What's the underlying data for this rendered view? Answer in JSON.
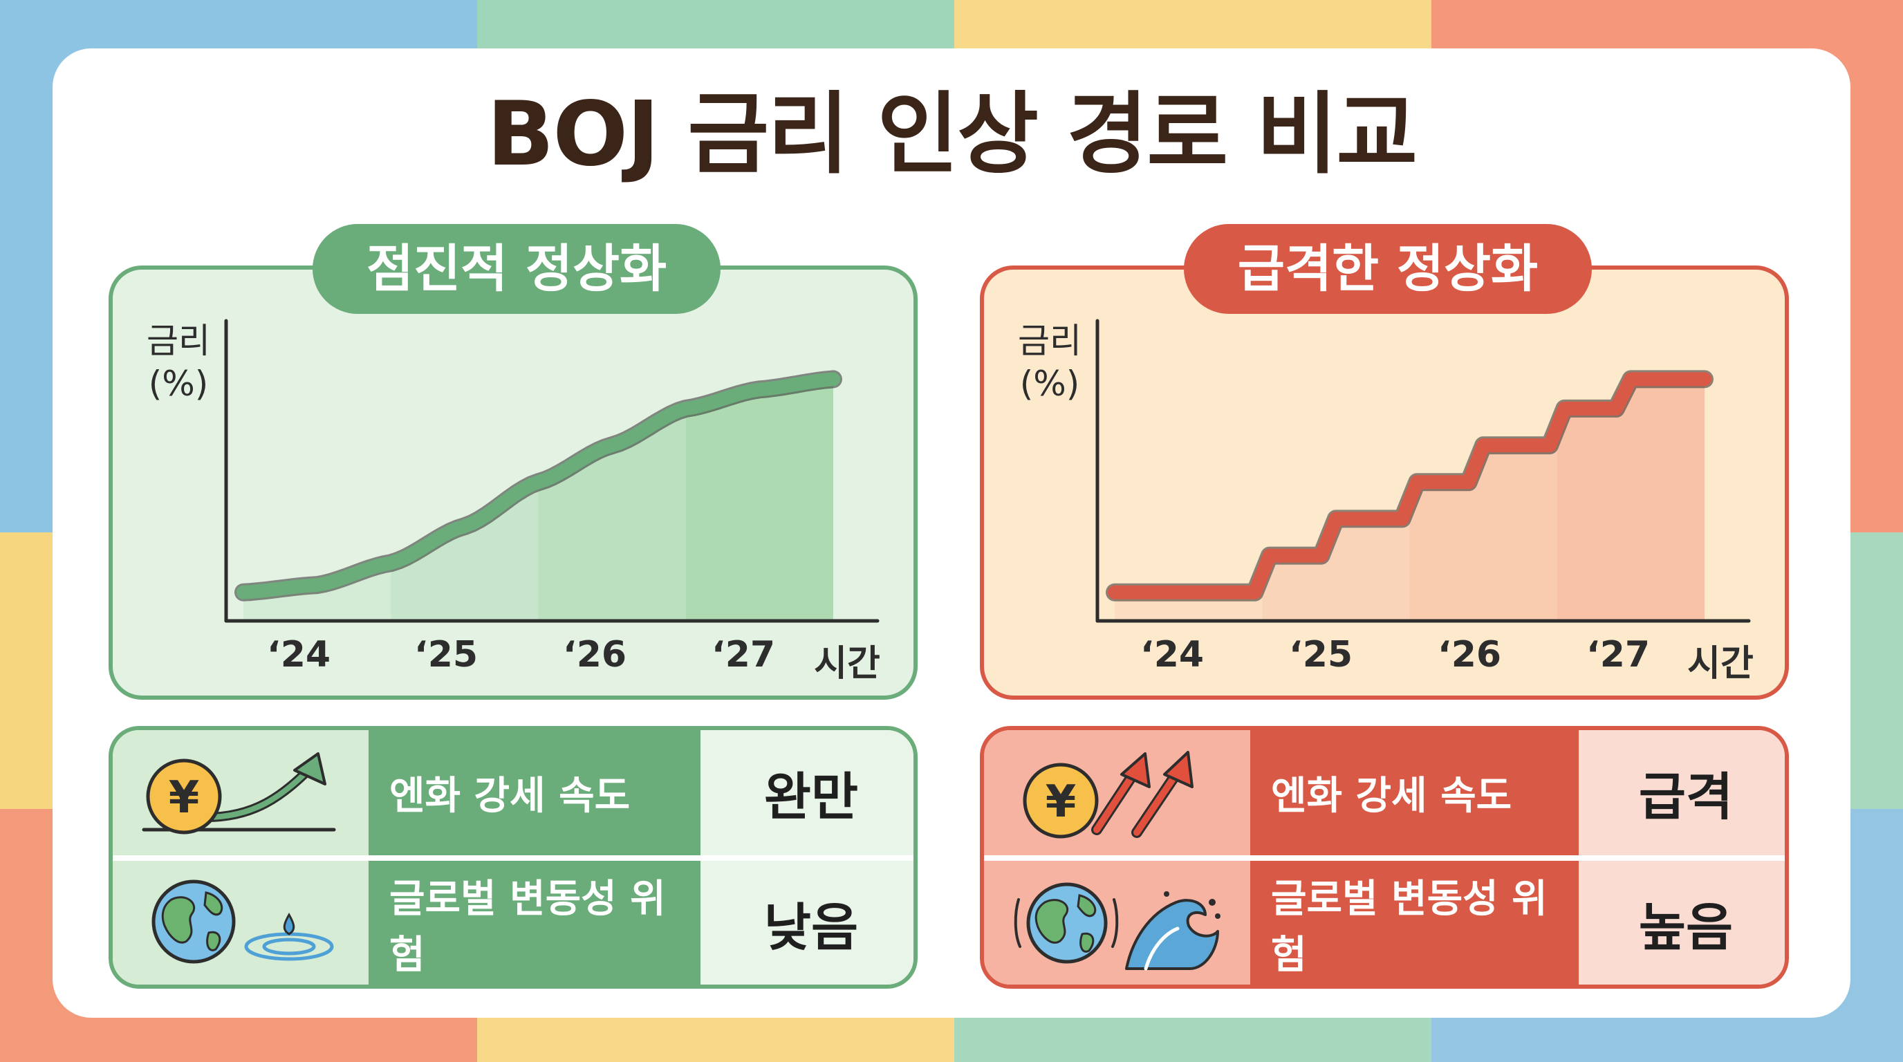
{
  "title": "BOJ 금리 인상 경로 비교",
  "colors": {
    "green_main": "#6aac7a",
    "green_panel": "#e4f2e3",
    "green_table_light": "#e9f5e8",
    "red_main": "#d85a46",
    "orange_panel": "#fde9cc",
    "red_table_light": "#fbdcd3",
    "title_text": "#3b2418"
  },
  "chart_data": [
    {
      "type": "line",
      "title": "점진적 정상화",
      "xlabel": "시간",
      "ylabel": "금리 (%)",
      "categories": [
        "‘24",
        "‘25",
        "‘26",
        "‘27"
      ],
      "x": [
        0,
        0.5,
        1,
        1.5,
        2,
        2.5,
        3,
        3.5,
        4
      ],
      "series": [
        {
          "values": [
            0.1,
            0.15,
            0.3,
            0.55,
            0.85,
            1.1,
            1.35,
            1.48,
            1.55
          ]
        }
      ],
      "yticks_shown": false,
      "grid": false,
      "line_style": "smooth",
      "color": "#6aac7a"
    },
    {
      "type": "line",
      "title": "급격한 정상화",
      "xlabel": "시간",
      "ylabel": "금리 (%)",
      "categories": [
        "‘24",
        "‘25",
        "‘26",
        "‘27"
      ],
      "x": [
        0,
        0.95,
        1.05,
        1.4,
        1.5,
        1.95,
        2.05,
        2.4,
        2.5,
        2.95,
        3.05,
        3.4,
        3.5,
        4
      ],
      "series": [
        {
          "values": [
            0.1,
            0.1,
            0.35,
            0.35,
            0.6,
            0.6,
            0.85,
            0.85,
            1.1,
            1.1,
            1.35,
            1.35,
            1.55,
            1.55
          ]
        }
      ],
      "yticks_shown": false,
      "grid": false,
      "line_style": "step",
      "color": "#d85a46"
    }
  ],
  "left": {
    "pill": "점진적 정상화",
    "ylabel_line1": "금리",
    "ylabel_line2": "(%)",
    "xlabel": "시간",
    "ticks": [
      "‘24",
      "‘25",
      "‘26",
      "‘27"
    ],
    "rows": [
      {
        "label": "엔화 강세 속도",
        "value": "완만",
        "icon": "yen-coin-gentle-arrow-icon"
      },
      {
        "label": "글로벌 변동성 위험",
        "value": "낮음",
        "icon": "globe-ripple-icon"
      }
    ]
  },
  "right": {
    "pill": "급격한 정상화",
    "ylabel_line1": "금리",
    "ylabel_line2": "(%)",
    "xlabel": "시간",
    "ticks": [
      "‘24",
      "‘25",
      "‘26",
      "‘27"
    ],
    "rows": [
      {
        "label": "엔화 강세 속도",
        "value": "급격",
        "icon": "yen-coin-double-arrow-icon"
      },
      {
        "label": "글로벌 변동성 위험",
        "value": "높음",
        "icon": "globe-wave-icon"
      }
    ]
  }
}
